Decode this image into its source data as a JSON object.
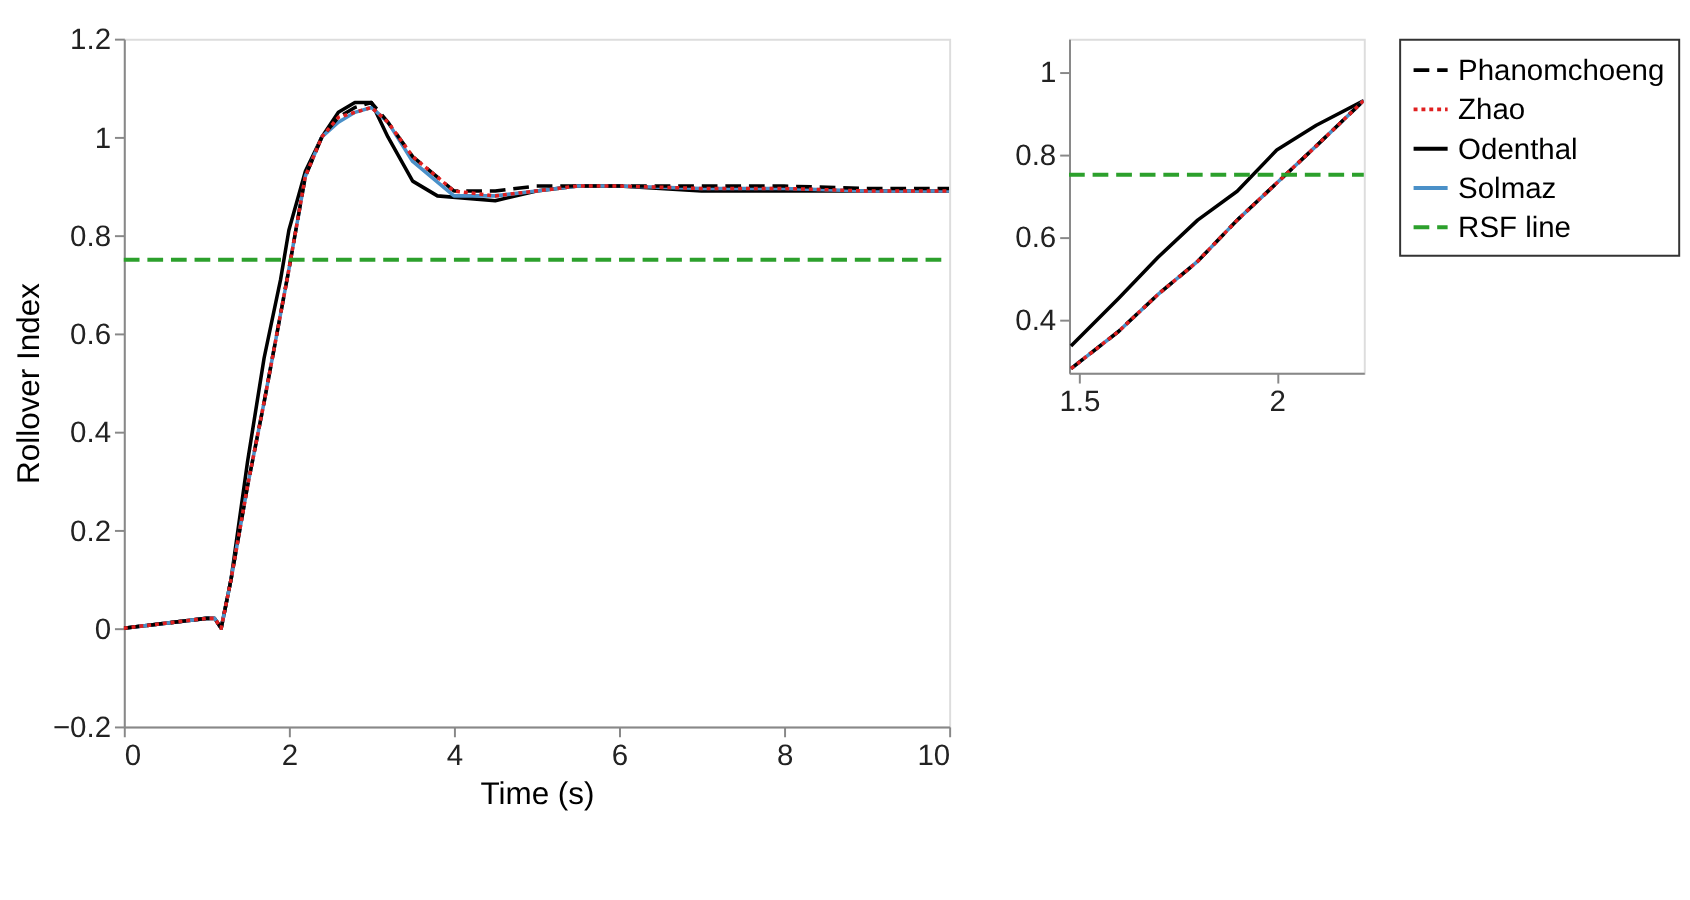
{
  "chart_data": [
    {
      "type": "line",
      "xlabel": "Time (s)",
      "ylabel": "Rollover Index",
      "xlim": [
        0,
        10
      ],
      "ylim": [
        -0.2,
        1.2
      ],
      "xticks": [
        0,
        2,
        4,
        6,
        8,
        10
      ],
      "yticks": [
        -0.2,
        0,
        0.2,
        0.4,
        0.6,
        0.8,
        1,
        1.2
      ],
      "grid": false,
      "legend": false,
      "series": [
        {
          "color": "#000000",
          "line_style": "dashed",
          "x": [
            0,
            1.0,
            1.1,
            1.18,
            1.3,
            1.5,
            1.7,
            1.9,
            2.0,
            2.2,
            2.4,
            2.6,
            2.8,
            3.0,
            3.2,
            3.5,
            4.0,
            4.5,
            5.0,
            5.5,
            6,
            7,
            8,
            9,
            10
          ],
          "values": [
            0,
            0.02,
            0.02,
            0.0,
            0.1,
            0.29,
            0.46,
            0.64,
            0.73,
            0.92,
            1.0,
            1.04,
            1.06,
            1.07,
            1.03,
            0.96,
            0.89,
            0.89,
            0.9,
            0.9,
            0.9,
            0.9,
            0.9,
            0.895,
            0.895
          ]
        },
        {
          "color": "#e02020",
          "line_style": "dotted",
          "x": [
            0,
            1.0,
            1.1,
            1.18,
            1.3,
            1.5,
            1.7,
            1.9,
            2.0,
            2.2,
            2.4,
            2.6,
            2.8,
            3.0,
            3.2,
            3.5,
            4.0,
            4.5,
            5.0,
            5.5,
            6,
            7,
            8,
            9,
            10
          ],
          "values": [
            0,
            0.02,
            0.02,
            0.0,
            0.1,
            0.29,
            0.46,
            0.64,
            0.73,
            0.92,
            1.0,
            1.04,
            1.05,
            1.06,
            1.03,
            0.96,
            0.89,
            0.88,
            0.89,
            0.9,
            0.9,
            0.895,
            0.895,
            0.89,
            0.89
          ]
        },
        {
          "color": "#000000",
          "line_style": "solid",
          "x": [
            0,
            1.0,
            1.1,
            1.18,
            1.3,
            1.5,
            1.7,
            1.9,
            2.0,
            2.2,
            2.4,
            2.6,
            2.8,
            3.0,
            3.2,
            3.5,
            3.8,
            4.5,
            5.0,
            5.5,
            6,
            7,
            8,
            9,
            10
          ],
          "values": [
            0,
            0.02,
            0.02,
            0.0,
            0.1,
            0.34,
            0.55,
            0.71,
            0.81,
            0.93,
            1.0,
            1.05,
            1.07,
            1.07,
            1.0,
            0.91,
            0.88,
            0.87,
            0.89,
            0.9,
            0.9,
            0.89,
            0.89,
            0.89,
            0.89
          ]
        },
        {
          "color": "#4a90c8",
          "line_style": "solid",
          "x": [
            0,
            1.0,
            1.1,
            1.18,
            1.3,
            1.5,
            1.7,
            1.9,
            2.0,
            2.2,
            2.4,
            2.6,
            2.8,
            3.0,
            3.2,
            3.5,
            4.0,
            4.5,
            5.0,
            5.5,
            6,
            7,
            8,
            9,
            10
          ],
          "values": [
            0,
            0.02,
            0.02,
            0.0,
            0.1,
            0.29,
            0.46,
            0.64,
            0.73,
            0.92,
            1.0,
            1.03,
            1.05,
            1.06,
            1.03,
            0.95,
            0.88,
            0.88,
            0.89,
            0.9,
            0.9,
            0.895,
            0.895,
            0.89,
            0.89
          ]
        }
      ],
      "ref_lines": [
        {
          "axis": "y",
          "value": 0.75,
          "color": "#2ca02c",
          "line_style": "dashed"
        }
      ]
    },
    {
      "type": "line",
      "xlim": [
        1.475,
        2.22
      ],
      "ylim": [
        0.27,
        1.08
      ],
      "xticks": [
        1.5,
        2
      ],
      "yticks": [
        0.4,
        0.6,
        0.8,
        1
      ],
      "grid": false,
      "legend": "right",
      "series": [
        {
          "name": "Phanomchoeng",
          "color": "#000000",
          "line_style": "dashed",
          "x": [
            1.48,
            1.6,
            1.7,
            1.8,
            1.9,
            2.0,
            2.1,
            2.22
          ],
          "values": [
            0.28,
            0.37,
            0.46,
            0.54,
            0.64,
            0.73,
            0.82,
            0.93
          ]
        },
        {
          "name": "Zhao",
          "color": "#e02020",
          "line_style": "dotted",
          "x": [
            1.48,
            1.6,
            1.7,
            1.8,
            1.9,
            2.0,
            2.1,
            2.22
          ],
          "values": [
            0.28,
            0.37,
            0.46,
            0.54,
            0.64,
            0.73,
            0.82,
            0.93
          ]
        },
        {
          "name": "Odenthal",
          "color": "#000000",
          "line_style": "solid",
          "x": [
            1.48,
            1.6,
            1.7,
            1.8,
            1.9,
            2.0,
            2.1,
            2.22
          ],
          "values": [
            0.335,
            0.45,
            0.55,
            0.64,
            0.71,
            0.81,
            0.87,
            0.93
          ]
        },
        {
          "name": "Solmaz",
          "color": "#4a90c8",
          "line_style": "solid",
          "x": [
            1.48,
            1.6,
            1.7,
            1.8,
            1.9,
            2.0,
            2.1,
            2.22
          ],
          "values": [
            0.28,
            0.37,
            0.46,
            0.54,
            0.64,
            0.73,
            0.82,
            0.93
          ]
        }
      ],
      "ref_lines": [
        {
          "axis": "y",
          "value": 0.75,
          "label": "RSF line",
          "color": "#2ca02c",
          "line_style": "dashed"
        }
      ]
    }
  ]
}
